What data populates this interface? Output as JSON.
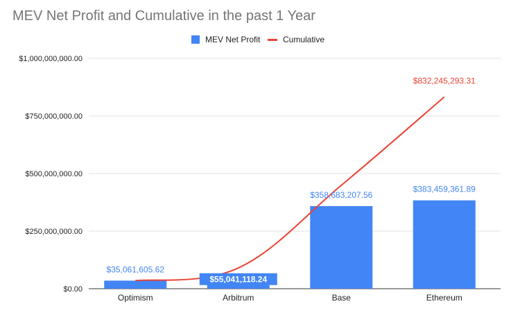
{
  "chart_data": {
    "type": "bar",
    "title": "MEV Net Profit and Cumulative in the past 1 Year",
    "categories": [
      "Optimism",
      "Arbitrum",
      "Base",
      "Ethereum"
    ],
    "series": [
      {
        "name": "MEV Net Profit",
        "type": "bar",
        "color": "#4285F4",
        "values": [
          35061605.62,
          55041118.24,
          358683207.56,
          383459361.89
        ],
        "labels": [
          "$35,061,605.62",
          "$55,041,118.24",
          "$358,683,207.56",
          "$383,459,361.89"
        ]
      },
      {
        "name": "Cumulative",
        "type": "line",
        "color": "#EA4335",
        "values": [
          35061605.62,
          90102723.86,
          448785931.42,
          832245293.31
        ],
        "labels": [
          "$832,245,293.31"
        ]
      }
    ],
    "ylim": [
      0,
      1000000000
    ],
    "yticks": [
      0,
      250000000,
      500000000,
      750000000,
      1000000000
    ],
    "ytick_labels": [
      "$0.00",
      "$250,000,000.00",
      "$500,000,000.00",
      "$750,000,000.00",
      "$1,000,000,000.00"
    ],
    "grid": true,
    "legend_position": "top-center",
    "xlabel": "",
    "ylabel": ""
  }
}
